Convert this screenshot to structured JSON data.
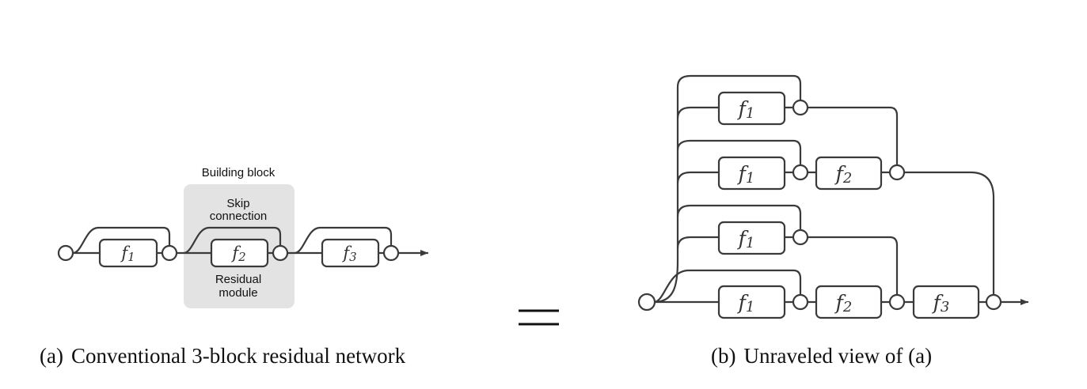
{
  "panel_a": {
    "caption_tag": "(a)",
    "caption_text": "Conventional 3-block residual network",
    "building_block_label": "Building block",
    "skip_label_line1": "Skip",
    "skip_label_line2": "connection",
    "residual_label_line1": "Residual",
    "residual_label_line2": "module",
    "functions": [
      "f",
      "f",
      "f"
    ],
    "subscripts": [
      "1",
      "2",
      "3"
    ]
  },
  "equals_sign": "=",
  "panel_b": {
    "caption_tag": "(b)",
    "caption_text": "Unraveled view of (a)",
    "rows": [
      {
        "functions": [
          "f"
        ],
        "subscripts": [
          "1"
        ]
      },
      {
        "functions": [
          "f",
          "f"
        ],
        "subscripts": [
          "1",
          "2"
        ]
      },
      {
        "functions": [
          "f"
        ],
        "subscripts": [
          "1"
        ]
      },
      {
        "functions": [
          "f",
          "f",
          "f"
        ],
        "subscripts": [
          "1",
          "2",
          "3"
        ]
      }
    ]
  },
  "colors": {
    "stroke": "#3a3a3a",
    "highlight_box": "#e3e3e3",
    "background": "#ffffff"
  }
}
